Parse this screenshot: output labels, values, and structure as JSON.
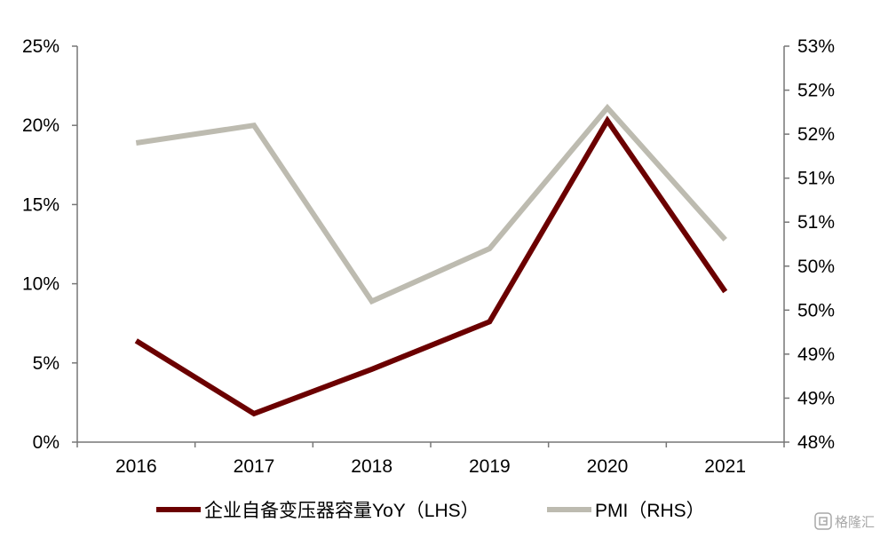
{
  "chart_data": {
    "type": "line",
    "categories": [
      "2016",
      "2017",
      "2018",
      "2019",
      "2020",
      "2021"
    ],
    "y_left": {
      "ticks": [
        "0%",
        "5%",
        "10%",
        "15%",
        "20%",
        "25%"
      ],
      "ylim": [
        0,
        25
      ]
    },
    "y_right": {
      "ticks": [
        "48%",
        "49%",
        "49%",
        "50%",
        "50%",
        "51%",
        "51%",
        "52%",
        "52%",
        "53%"
      ],
      "ylim": [
        48.0,
        52.5
      ]
    },
    "series": [
      {
        "name": "企业自备变压器容量YoY（LHS）",
        "axis": "left",
        "color": "#6b0000",
        "values": [
          6.4,
          1.8,
          4.6,
          7.6,
          20.3,
          9.5
        ]
      },
      {
        "name": "PMI（RHS）",
        "axis": "right",
        "color": "#bdbbb0",
        "values": [
          51.4,
          51.6,
          49.6,
          50.2,
          51.8,
          50.3
        ]
      }
    ],
    "grid": false,
    "legend_position": "bottom"
  },
  "watermark": {
    "text": "格隆汇"
  }
}
